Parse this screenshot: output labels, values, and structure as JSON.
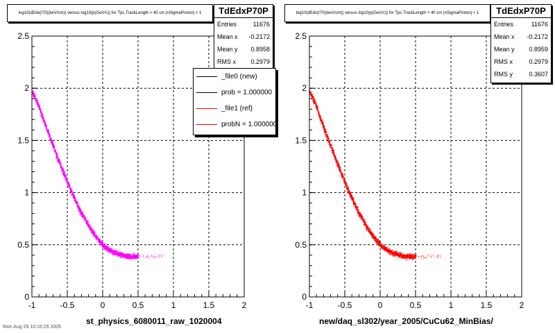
{
  "panels": [
    {
      "title": "log10(dEdx(I70)(keV/cm)) versus log10(p(GeV/c)) for Tpc.TrackLength > 40 cm |nSigmaProton| < 1",
      "stats": {
        "name": "TdEdxP70P",
        "rows": [
          {
            "label": "Entries",
            "value": "11676"
          },
          {
            "label": "Mean x",
            "value": "-0.2172"
          },
          {
            "label": "Mean y",
            "value": "0.8958"
          },
          {
            "label": "RMS x",
            "value": "0.2979"
          }
        ]
      },
      "legend": [
        {
          "label": "_file0 (new)",
          "color": "#000000"
        },
        {
          "label": "prob = 1.000000",
          "color": "#000000"
        },
        {
          "label": "_file1 (ref)",
          "color": "#ff0000"
        },
        {
          "label": "probN = 1.000000",
          "color": "#ff0000"
        }
      ],
      "xlabel": "st_physics_6080011_raw_1020004",
      "marker_color": "#ff00ff"
    },
    {
      "title": "log10(dEdx(I70)(keV/cm)) versus log10(p(GeV/c)) for Tpc.TrackLength > 40 cm |nSigmaProton| < 1",
      "stats": {
        "name": "TdEdxP70P",
        "rows": [
          {
            "label": "Entries",
            "value": "11676"
          },
          {
            "label": "Mean x",
            "value": "-0.2172"
          },
          {
            "label": "Mean y",
            "value": "0.8959"
          },
          {
            "label": "RMS x",
            "value": "0.2979"
          },
          {
            "label": "RMS y",
            "value": "0.3607"
          }
        ]
      },
      "xlabel": "new/daq_sl302/year_2005/CuCu62_MinBias/",
      "marker_color": "#ff0000"
    }
  ],
  "footer": "Mon Aug 29 10:16:29 2005",
  "chart_data": [
    {
      "type": "scatter",
      "xlim": [
        -1,
        2
      ],
      "ylim": [
        0,
        2.5
      ],
      "x_ticks": [
        "-1",
        "-0.5",
        "0",
        "0.5",
        "1",
        "1.5",
        "2"
      ],
      "y_ticks": [
        "0",
        "0.5",
        "1",
        "1.5",
        "2",
        "2.5"
      ],
      "grid": true,
      "legend_position": "top-right",
      "series": [
        {
          "color": "#ff00ff",
          "points": [
            [
              -1.0,
              1.97
            ],
            [
              -0.95,
              1.9
            ],
            [
              -0.9,
              1.82
            ],
            [
              -0.85,
              1.72
            ],
            [
              -0.8,
              1.63
            ],
            [
              -0.75,
              1.53
            ],
            [
              -0.7,
              1.45
            ],
            [
              -0.65,
              1.35
            ],
            [
              -0.6,
              1.27
            ],
            [
              -0.55,
              1.18
            ],
            [
              -0.5,
              1.1
            ],
            [
              -0.45,
              1.02
            ],
            [
              -0.4,
              0.95
            ],
            [
              -0.35,
              0.87
            ],
            [
              -0.3,
              0.8
            ],
            [
              -0.25,
              0.75
            ],
            [
              -0.2,
              0.68
            ],
            [
              -0.15,
              0.63
            ],
            [
              -0.1,
              0.58
            ],
            [
              -0.05,
              0.54
            ],
            [
              0.0,
              0.5
            ],
            [
              0.05,
              0.47
            ],
            [
              0.1,
              0.45
            ],
            [
              0.15,
              0.43
            ],
            [
              0.2,
              0.42
            ],
            [
              0.25,
              0.41
            ],
            [
              0.3,
              0.4
            ],
            [
              0.35,
              0.39
            ],
            [
              0.4,
              0.39
            ],
            [
              0.45,
              0.39
            ],
            [
              0.5,
              0.39
            ]
          ]
        }
      ]
    },
    {
      "type": "scatter",
      "xlim": [
        -1,
        2
      ],
      "ylim": [
        0,
        2.5
      ],
      "x_ticks": [
        "-1",
        "-0.5",
        "0",
        "0.5",
        "1",
        "1.5",
        "2"
      ],
      "y_ticks": [
        "0",
        "0.5",
        "1",
        "1.5",
        "2",
        "2.5"
      ],
      "grid": true,
      "series": [
        {
          "color": "#ff0000",
          "points": [
            [
              -1.0,
              1.97
            ],
            [
              -0.95,
              1.9
            ],
            [
              -0.9,
              1.82
            ],
            [
              -0.85,
              1.72
            ],
            [
              -0.8,
              1.63
            ],
            [
              -0.75,
              1.53
            ],
            [
              -0.7,
              1.45
            ],
            [
              -0.65,
              1.35
            ],
            [
              -0.6,
              1.27
            ],
            [
              -0.55,
              1.18
            ],
            [
              -0.5,
              1.1
            ],
            [
              -0.45,
              1.02
            ],
            [
              -0.4,
              0.95
            ],
            [
              -0.35,
              0.87
            ],
            [
              -0.3,
              0.8
            ],
            [
              -0.25,
              0.75
            ],
            [
              -0.2,
              0.68
            ],
            [
              -0.15,
              0.63
            ],
            [
              -0.1,
              0.58
            ],
            [
              -0.05,
              0.54
            ],
            [
              0.0,
              0.5
            ],
            [
              0.05,
              0.47
            ],
            [
              0.1,
              0.45
            ],
            [
              0.15,
              0.43
            ],
            [
              0.2,
              0.42
            ],
            [
              0.25,
              0.41
            ],
            [
              0.3,
              0.4
            ],
            [
              0.35,
              0.39
            ],
            [
              0.4,
              0.39
            ],
            [
              0.45,
              0.39
            ],
            [
              0.5,
              0.39
            ]
          ]
        }
      ]
    }
  ]
}
